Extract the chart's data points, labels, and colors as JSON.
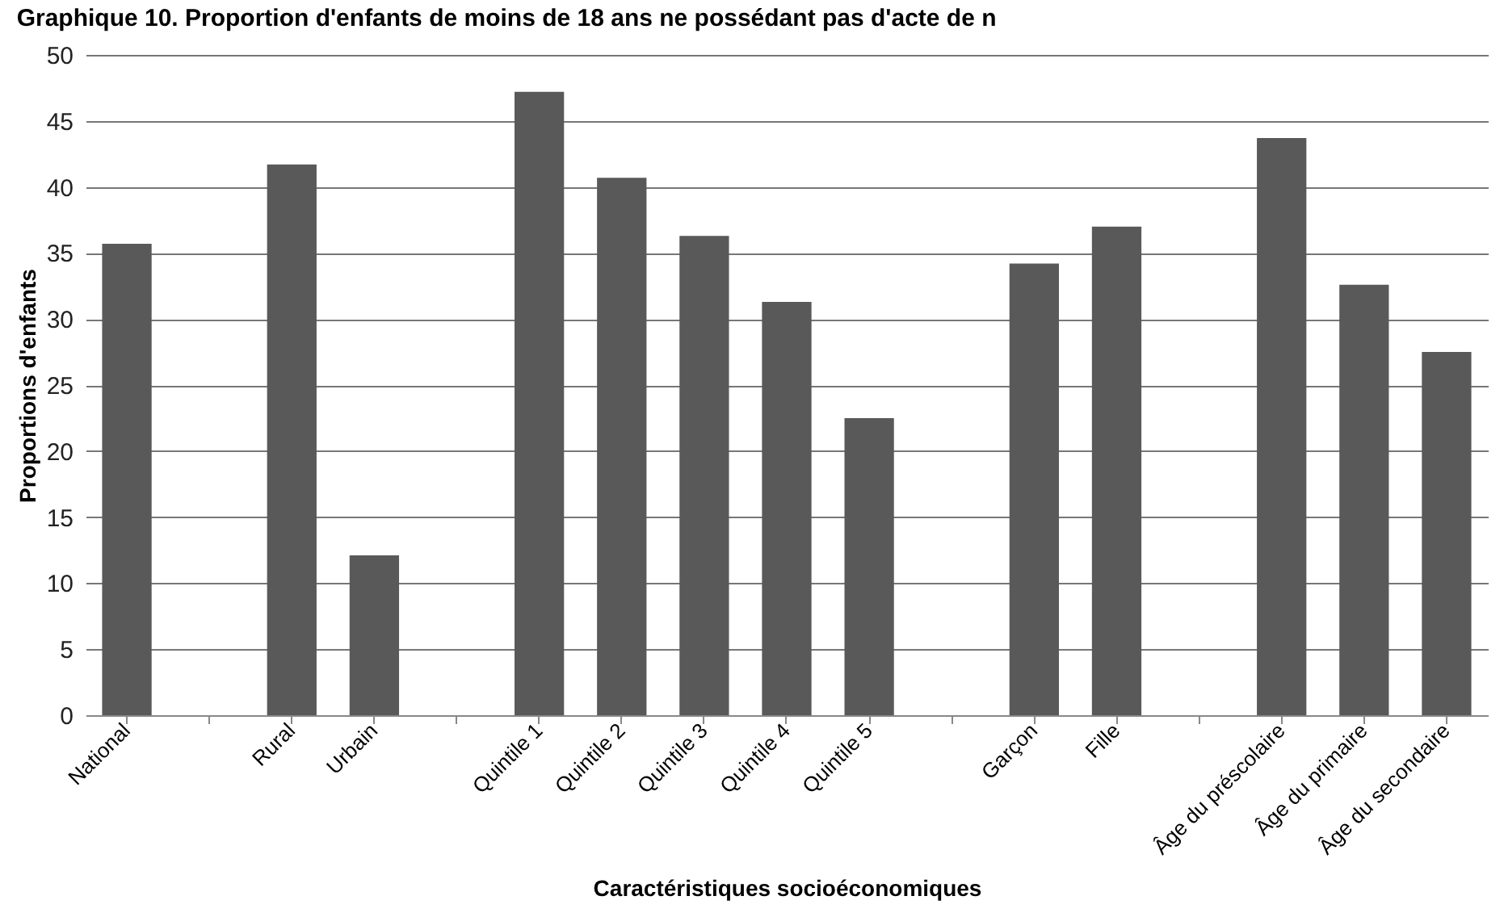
{
  "chart_data": {
    "type": "bar",
    "title": "Graphique 10. Proportion d'enfants de moins de 18 ans ne possédant pas d'acte de n",
    "xlabel": "Caractéristiques socioéconomiques",
    "ylabel": "Proportions d'enfants",
    "categories": [
      "National",
      null,
      "Rural",
      "Urbain",
      null,
      "Quintile 1",
      "Quintile 2",
      "Quintile 3",
      "Quintile 4",
      "Quintile 5",
      null,
      "Garçon",
      "Fille",
      null,
      "Âge du préscolaire",
      "Âge du primaire",
      "Âge du secondaire"
    ],
    "values": [
      35.7,
      null,
      41.7,
      12.1,
      null,
      47.2,
      40.7,
      36.3,
      31.3,
      22.5,
      null,
      34.2,
      37.0,
      null,
      43.7,
      32.6,
      27.5
    ],
    "color": "#595959",
    "ylim": [
      0,
      50
    ],
    "yticks": [
      0,
      5,
      10,
      15,
      20,
      25,
      30,
      35,
      40,
      45,
      50
    ],
    "grid": "y"
  }
}
